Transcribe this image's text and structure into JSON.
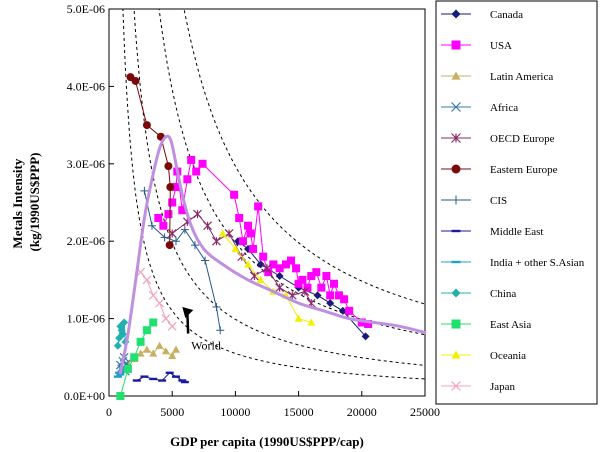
{
  "chart_data": {
    "type": "line",
    "xlabel": "GDP per capita (1990US$PPP/cap)",
    "ylabel_lines": [
      "Metals Intensity",
      "(kg/1990US$PPP)"
    ],
    "xlim": [
      0,
      25000
    ],
    "ylim": [
      0,
      5e-06
    ],
    "x_ticks": [
      0,
      5000,
      10000,
      15000,
      20000,
      25000
    ],
    "x_tick_labels": [
      "0",
      "5000",
      "10000",
      "15000",
      "20000",
      "25000"
    ],
    "y_ticks": [
      0,
      1e-06,
      2e-06,
      3e-06,
      4e-06,
      5e-06
    ],
    "y_tick_labels": [
      "0.0E+00",
      "1.0E-06",
      "2.0E-06",
      "3.0E-06",
      "4.0E-06",
      "5.0E-06"
    ],
    "grid": false,
    "legend_position": "right",
    "annotations": [
      {
        "text": "World",
        "x": 6500,
        "y": 6e-07,
        "arrow_to": [
          5800,
          1.15e-06
        ]
      }
    ],
    "reference_curves": [
      {
        "style": "dashed",
        "k": 0.0055
      },
      {
        "style": "dashed",
        "k": 0.0099
      },
      {
        "style": "dashed",
        "k": 0.0198
      },
      {
        "style": "dashed",
        "k": 0.0297
      }
    ],
    "series": [
      {
        "name": "Canada",
        "color": "#1a1a7a",
        "marker": "diamond",
        "x": [
          10200,
          11000,
          12000,
          13500,
          15000,
          16500,
          17500,
          18500,
          20300
        ],
        "y": [
          2e-06,
          1.9e-06,
          1.7e-06,
          1.55e-06,
          1.4e-06,
          1.3e-06,
          1.2e-06,
          1.1e-06,
          7.7e-07
        ]
      },
      {
        "name": "USA",
        "color": "#ff00ff",
        "marker": "square",
        "x": [
          3900,
          4300,
          4700,
          5000,
          5300,
          5400,
          5800,
          6200,
          6500,
          6900,
          7400,
          9900,
          10300,
          10600,
          11000,
          11200,
          11400,
          11800,
          12200,
          12600,
          13000,
          13500,
          14000,
          14400,
          14800,
          15000,
          15300,
          15700,
          16000,
          16400,
          16800,
          17200,
          17500,
          17800,
          18200,
          18600,
          19000,
          20000,
          20500
        ],
        "y": [
          2.3e-06,
          2.2e-06,
          2.35e-06,
          2.5e-06,
          2.7e-06,
          2.9e-06,
          2.4e-06,
          2.8e-06,
          3.05e-06,
          2.9e-06,
          3e-06,
          2.6e-06,
          2.3e-06,
          2e-06,
          2.2e-06,
          2.1e-06,
          1.9e-06,
          2.45e-06,
          1.8e-06,
          1.6e-06,
          1.7e-06,
          1.65e-06,
          1.7e-06,
          1.75e-06,
          1.65e-06,
          1.45e-06,
          1.5e-06,
          1.4e-06,
          1.55e-06,
          1.6e-06,
          1.4e-06,
          1.55e-06,
          1.3e-06,
          1.45e-06,
          1.3e-06,
          1.25e-06,
          1.1e-06,
          9.5e-07,
          9.3e-07
        ]
      },
      {
        "name": "Latin America",
        "color": "#c8b060",
        "marker": "triangle",
        "x": [
          1500,
          2000,
          2500,
          3000,
          3500,
          4000,
          4500,
          5000,
          5300
        ],
        "y": [
          4.2e-07,
          4.8e-07,
          5.5e-07,
          6e-07,
          5.5e-07,
          6.5e-07,
          5.8e-07,
          5.2e-07,
          6e-07
        ]
      },
      {
        "name": "Africa",
        "color": "#3a7aaa",
        "marker": "x",
        "x": [
          900,
          1000,
          1100,
          1200,
          1300,
          1400
        ],
        "y": [
          4e-07,
          3.5e-07,
          4.5e-07,
          5e-07,
          3.2e-07,
          4.2e-07
        ]
      },
      {
        "name": "OECD Europe",
        "color": "#8a2a6a",
        "marker": "star",
        "x": [
          5000,
          6200,
          7000,
          7800,
          8500,
          9500,
          10500,
          11500,
          12500,
          13500,
          14500,
          15500,
          16000
        ],
        "y": [
          2.1e-06,
          2.25e-06,
          2.35e-06,
          2.2e-06,
          2e-06,
          2.1e-06,
          1.8e-06,
          1.55e-06,
          1.65e-06,
          1.4e-06,
          1.3e-06,
          1.35e-06,
          1.2e-06
        ]
      },
      {
        "name": "Eastern Europe",
        "color": "#7a0a0a",
        "marker": "circle",
        "x": [
          1700,
          2100,
          3000,
          4100,
          4700,
          4850,
          4800
        ],
        "y": [
          4.12e-06,
          4.07e-06,
          3.5e-06,
          3.35e-06,
          2.97e-06,
          2.7e-06,
          1.95e-06
        ]
      },
      {
        "name": "CIS",
        "color": "#2a5a8a",
        "marker": "plus",
        "x": [
          2800,
          3400,
          4400,
          5300,
          6000,
          6800,
          7600,
          8500,
          8800
        ],
        "y": [
          2.65e-06,
          2.2e-06,
          2.05e-06,
          2e-06,
          2.15e-06,
          1.95e-06,
          1.75e-06,
          1.15e-06,
          8.5e-07
        ]
      },
      {
        "name": "Middle East",
        "color": "#1a1aa0",
        "marker": "dash",
        "x": [
          2200,
          2800,
          3500,
          4200,
          4800,
          5300,
          5800,
          6000
        ],
        "y": [
          2e-07,
          2.5e-07,
          2.2e-07,
          2e-07,
          3e-07,
          2.5e-07,
          2e-07,
          1.8e-07
        ]
      },
      {
        "name": "India + other S.Asian",
        "color": "#20a0c8",
        "marker": "dash",
        "x": [
          700,
          800,
          900,
          1000,
          1100
        ],
        "y": [
          2.5e-07,
          3e-07,
          2.8e-07,
          3.2e-07,
          3.5e-07
        ]
      },
      {
        "name": "China",
        "color": "#20b0b0",
        "marker": "diamond",
        "x": [
          700,
          800,
          900,
          1000,
          1100,
          1200,
          1300
        ],
        "y": [
          6.5e-07,
          7.5e-07,
          9e-07,
          8.5e-07,
          8e-07,
          9.5e-07,
          7e-07
        ]
      },
      {
        "name": "East Asia",
        "color": "#20e070",
        "marker": "square",
        "x": [
          900,
          1500,
          2000,
          2500,
          3000,
          3500
        ],
        "y": [
          0.0,
          3.5e-07,
          5e-07,
          7e-07,
          8.5e-07,
          9.5e-07
        ]
      },
      {
        "name": "Oceania",
        "color": "#f0f000",
        "marker": "triangle",
        "x": [
          9000,
          10000,
          11000,
          12000,
          13000,
          14000,
          15000,
          16000
        ],
        "y": [
          2.1e-06,
          1.9e-06,
          1.7e-06,
          1.5e-06,
          1.35e-06,
          1.3e-06,
          1e-06,
          9.5e-07
        ]
      },
      {
        "name": "Japan",
        "color": "#f0a0c0",
        "marker": "x",
        "x": [
          2500,
          3000,
          3500,
          4000,
          4500,
          5000
        ],
        "y": [
          1.6e-06,
          1.5e-06,
          1.3e-06,
          1.2e-06,
          1e-06,
          9e-07
        ]
      }
    ],
    "world_curve": {
      "color": "#c090e0",
      "x": [
        900,
        1500,
        2200,
        2800,
        3400,
        4000,
        4500,
        4900,
        5300,
        5800,
        6500,
        7500,
        9000,
        11000,
        13000,
        15000,
        17000,
        19000,
        21000,
        23000,
        25000
      ],
      "y": [
        3e-07,
        8e-07,
        1.6e-06,
        2.3e-06,
        2.8e-06,
        3.2e-06,
        3.35e-06,
        3.3e-06,
        3e-06,
        2.6e-06,
        2.2e-06,
        1.9e-06,
        1.7e-06,
        1.5e-06,
        1.35e-06,
        1.2e-06,
        1.1e-06,
        1e-06,
        9.5e-07,
        9e-07,
        8.2e-07
      ]
    }
  }
}
